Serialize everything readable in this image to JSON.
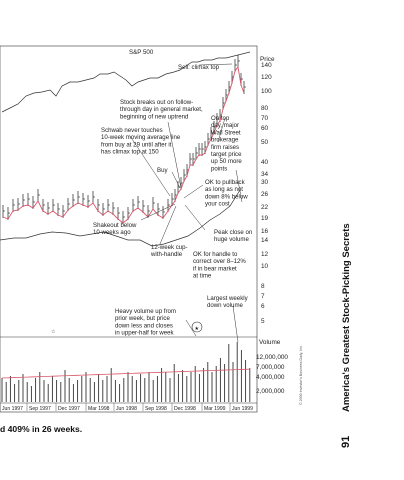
{
  "chart": {
    "title": "S&P 500",
    "price_axis_label": "Price",
    "price_ticks": [
      "140",
      "120",
      "100",
      "80",
      "70",
      "60",
      "50",
      "40",
      "34",
      "30",
      "26",
      "22",
      "19",
      "16",
      "14",
      "12",
      "10",
      "8",
      "7",
      "6",
      "5"
    ],
    "volume_label": "Volume",
    "volume_ticks": [
      "12,000,000",
      "7,000,000",
      "4,000,000",
      "2,000,000"
    ],
    "x_labels": [
      "Jun 1997",
      "Sep 1997",
      "Dec 1997",
      "Mar 1998",
      "Jun 1998",
      "Sep 1998",
      "Dec 1998",
      "Mar 1999",
      "Jun 1999"
    ],
    "annotations": [
      {
        "id": "sell",
        "lines": [
          "Sell: climax top"
        ]
      },
      {
        "id": "breakout",
        "lines": [
          "Stock breaks out on follow-",
          "through day in general market,",
          "beginning of new uptrend"
        ]
      },
      {
        "id": "schwab",
        "lines": [
          "Schwab never touches",
          "10-week moving average line",
          "from buy at 29 until after it",
          "has climax top at 150"
        ]
      },
      {
        "id": "ontop",
        "lines": [
          "On top",
          "day, major",
          "Wall Street",
          "brokerage",
          "firm raises",
          "target price",
          "up 50 more",
          "points"
        ]
      },
      {
        "id": "buy",
        "lines": [
          "Buy"
        ]
      },
      {
        "id": "pullback",
        "lines": [
          "OK to pullback",
          "as long as not",
          "down 8% below",
          "your cost"
        ]
      },
      {
        "id": "shakeout",
        "lines": [
          "Shakeout below",
          "10 weeks ago"
        ]
      },
      {
        "id": "peak",
        "lines": [
          "Peak close on",
          "huge volume"
        ]
      },
      {
        "id": "cup",
        "lines": [
          "12-week cup-",
          "with-handle"
        ]
      },
      {
        "id": "handle",
        "lines": [
          "OK for handle to",
          "correct over 8–12%",
          "if in bear market",
          "at time"
        ]
      },
      {
        "id": "largest",
        "lines": [
          "Largest weekly",
          "down volume"
        ]
      },
      {
        "id": "heavy",
        "lines": [
          "Heavy volume up from",
          "prior week, but price",
          "down less and closes",
          "in upper-half for week"
        ]
      }
    ]
  },
  "caption": "d 409% in 26 weeks.",
  "side_title": "America's Greatest Stock-Picking Secrets",
  "page_number": "91",
  "copyright": "© 2000 Investor's Business Daily, Inc.",
  "colors": {
    "ma_line": "#d9576b",
    "bars": "#222222",
    "volume_ma": "#d9576b"
  }
}
